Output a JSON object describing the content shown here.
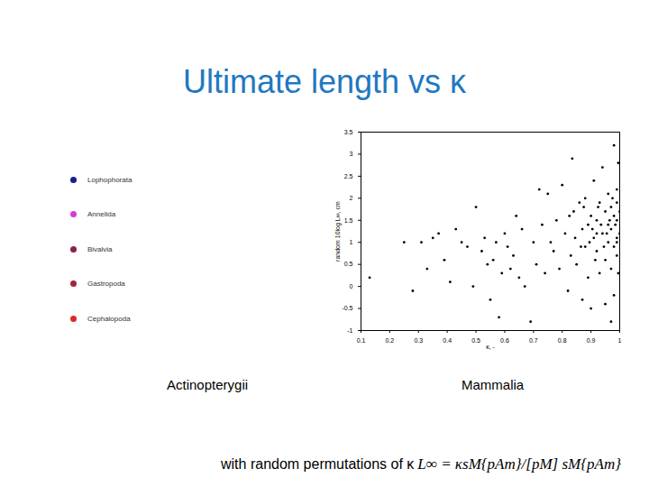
{
  "chart_data": {
    "type": "scatter",
    "title": "Ultimate length vs κ",
    "xlabel": "κ, -",
    "ylabel": "random 10log L∞, cm",
    "color": "#000000",
    "marker": "dot",
    "xlim": [
      0.1,
      1
    ],
    "xticks": [
      0.1,
      0.2,
      0.3,
      0.4,
      0.5,
      0.6,
      0.7,
      0.8,
      0.9,
      1
    ],
    "ylim": [
      -1,
      3.5
    ],
    "yticks": [
      -1,
      -0.5,
      0,
      0.5,
      1,
      1.5,
      2,
      2.5,
      3,
      3.5
    ],
    "x": [
      0.13,
      0.25,
      0.28,
      0.31,
      0.33,
      0.35,
      0.37,
      0.39,
      0.41,
      0.43,
      0.45,
      0.47,
      0.49,
      0.5,
      0.52,
      0.53,
      0.54,
      0.55,
      0.56,
      0.57,
      0.58,
      0.59,
      0.6,
      0.61,
      0.62,
      0.63,
      0.64,
      0.65,
      0.66,
      0.67,
      0.69,
      0.7,
      0.71,
      0.72,
      0.73,
      0.74,
      0.75,
      0.76,
      0.77,
      0.78,
      0.79,
      0.8,
      0.81,
      0.82,
      0.83,
      0.84,
      0.85,
      0.86,
      0.87,
      0.87,
      0.88,
      0.88,
      0.89,
      0.89,
      0.9,
      0.9,
      0.91,
      0.91,
      0.92,
      0.92,
      0.93,
      0.93,
      0.94,
      0.94,
      0.95,
      0.95,
      0.95,
      0.96,
      0.96,
      0.96,
      0.97,
      0.97,
      0.97,
      0.98,
      0.98,
      0.98,
      0.98,
      0.99,
      0.99,
      0.99,
      0.99,
      0.99,
      1,
      1,
      0.985,
      0.975,
      0.965,
      0.955,
      0.945,
      0.935,
      0.925,
      0.915,
      0.905,
      0.895,
      0.875,
      0.865,
      0.845,
      0.835,
      0.825,
      0.995,
      0.995,
      0.97,
      0.92,
      0.99
    ],
    "values": [
      0.2,
      1.0,
      -0.1,
      1.0,
      0.4,
      1.1,
      1.2,
      0.6,
      0.1,
      1.3,
      1.0,
      0.9,
      0.0,
      1.8,
      0.8,
      1.1,
      0.5,
      -0.3,
      0.6,
      1.0,
      -0.7,
      0.3,
      1.2,
      0.9,
      0.4,
      0.7,
      1.6,
      0.2,
      1.3,
      0.0,
      -0.8,
      1.0,
      0.5,
      2.2,
      1.4,
      0.3,
      2.1,
      1.0,
      0.8,
      1.5,
      0.4,
      2.3,
      1.2,
      -0.1,
      0.7,
      1.7,
      0.5,
      1.9,
      1.3,
      -0.3,
      2.0,
      0.9,
      1.4,
      0.2,
      1.6,
      -0.5,
      1.1,
      2.4,
      0.8,
      1.5,
      1.9,
      0.3,
      1.2,
      2.7,
      1.7,
      0.6,
      -0.4,
      1.4,
      1.0,
      2.1,
      1.8,
      0.4,
      1.3,
      1.6,
      0.9,
      3.2,
      -0.2,
      1.5,
      2.2,
      1.1,
      0.7,
      1.9,
      1.2,
      1.7,
      1.4,
      2.0,
      1.5,
      1.2,
      0.9,
      1.4,
      1.8,
      0.6,
      1.3,
      1.0,
      1.8,
      0.9,
      1.1,
      2.9,
      1.6,
      0.3,
      2.8,
      -0.8,
      1.2,
      1.0
    ]
  },
  "slide": {
    "legend": [
      {
        "name": "Lophophorata",
        "color": "#1c1c8a"
      },
      {
        "name": "Annelida",
        "color": "#d63cd6"
      },
      {
        "name": "Bivalvia",
        "color": "#8c1f4f"
      },
      {
        "name": "Gastropoda",
        "color": "#a3243f"
      },
      {
        "name": "Cephalopoda",
        "color": "#e02626"
      }
    ],
    "captions": [
      "Actinopterygii",
      "Mammalia"
    ],
    "note": "with random permutations of κ",
    "formula": "L∞ = κsM{pAm}/[pM] sM{pAm}"
  }
}
